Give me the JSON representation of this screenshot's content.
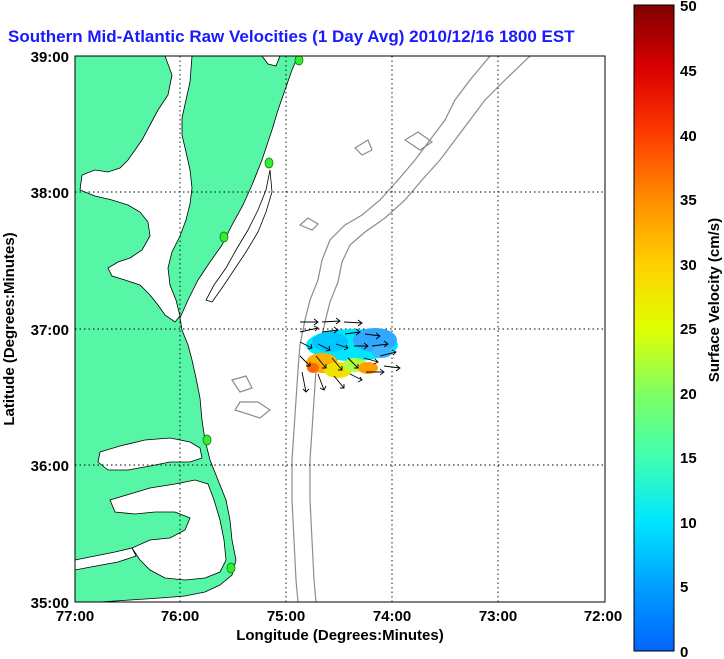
{
  "title": "Southern Mid-Atlantic Raw Velocities (1 Day Avg) 2010/12/16 1800 EST",
  "axes": {
    "x_label": "Longitude (Degrees:Minutes)",
    "y_label": "Latitude (Degrees:Minutes)",
    "x_ticks": [
      "77:00",
      "76:00",
      "75:00",
      "74:00",
      "73:00",
      "72:00"
    ],
    "y_ticks": [
      "39:00",
      "38:00",
      "37:00",
      "36:00",
      "35:00"
    ],
    "x_range_deg_west": [
      77,
      72
    ],
    "y_range_deg_north": [
      35,
      39
    ],
    "grid": "dotted"
  },
  "colorbar": {
    "label": "Surface Velocity (cm/s)",
    "ticks": [
      "50",
      "45",
      "40",
      "35",
      "30",
      "25",
      "20",
      "15",
      "10",
      "5",
      "0"
    ],
    "min": 0,
    "max": 50,
    "colormap": [
      "#0064ff",
      "#00c8ff",
      "#00ffff",
      "#40ffb0",
      "#a0ff50",
      "#ffff00",
      "#ffc800",
      "#ff8000",
      "#ff3000",
      "#e00000",
      "#800000"
    ]
  },
  "colors": {
    "land": "#57f5a6",
    "bathymetry": "#8c8c8c",
    "title": "#1a1aff",
    "station": "#33ee33"
  }
}
